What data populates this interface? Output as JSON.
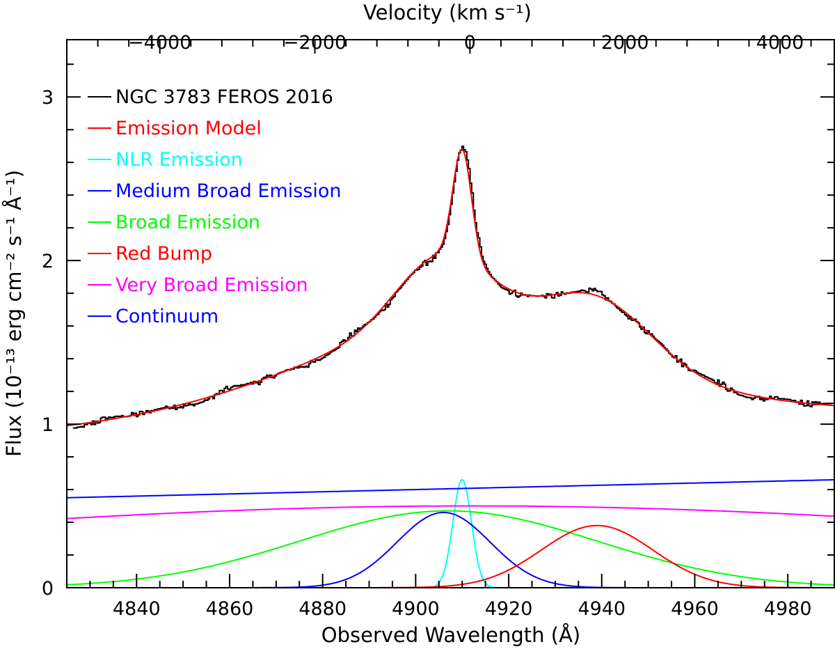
{
  "chart_data": {
    "type": "line",
    "title": "",
    "xlabel": "Observed Wavelength (Å)",
    "ylabel": "Flux (10⁻¹³ erg cm⁻² s⁻¹ Å⁻¹)",
    "top_xlabel": "Velocity (km s⁻¹)",
    "xlim": [
      4825,
      4990
    ],
    "ylim": [
      0,
      3.35
    ],
    "top_xlim": [
      -5200,
      4700
    ],
    "x_ticks": [
      4840,
      4860,
      4880,
      4900,
      4920,
      4940,
      4960,
      4980
    ],
    "x_tick_labels": [
      "4840",
      "4860",
      "4880",
      "4900",
      "4920",
      "4940",
      "4960",
      "4980"
    ],
    "y_ticks": [
      0,
      1,
      2,
      3
    ],
    "y_tick_labels": [
      "0",
      "1",
      "2",
      "3"
    ],
    "top_ticks": [
      -4000,
      -2000,
      0,
      2000,
      4000
    ],
    "top_tick_labels": [
      "−4000",
      "−2000",
      "0",
      "2000",
      "4000"
    ],
    "legend_position": "top-left",
    "series": [
      {
        "name": "NGC 3783 FEROS 2016",
        "color": "#000000",
        "kind": "observed spectrum (step)"
      },
      {
        "name": "Emission Model",
        "color": "#ff0000",
        "kind": "sum of components"
      },
      {
        "name": "NLR Emission",
        "color": "#00ffff",
        "model": "gaussian",
        "amplitude": 0.66,
        "center": 4910,
        "sigma": 2.0
      },
      {
        "name": "Medium Broad Emission",
        "color": "#0000ff",
        "model": "gaussian",
        "amplitude": 0.46,
        "center": 4906,
        "sigma": 10.0
      },
      {
        "name": "Broad Emission",
        "color": "#00ff00",
        "model": "gaussian",
        "amplitude": 0.47,
        "center": 4907,
        "sigma": 32.0
      },
      {
        "name": "Red Bump",
        "color": "#ff0000",
        "model": "gaussian",
        "amplitude": 0.38,
        "center": 4939,
        "sigma": 12.0
      },
      {
        "name": "Very Broad Emission",
        "color": "#ff00ff",
        "model": "gaussian",
        "amplitude": 0.5,
        "center": 4912,
        "sigma": 150.0
      },
      {
        "name": "Continuum",
        "color": "#0000ff",
        "model": "linear",
        "x": [
          4825,
          4990
        ],
        "y": [
          0.55,
          0.66
        ]
      }
    ]
  }
}
